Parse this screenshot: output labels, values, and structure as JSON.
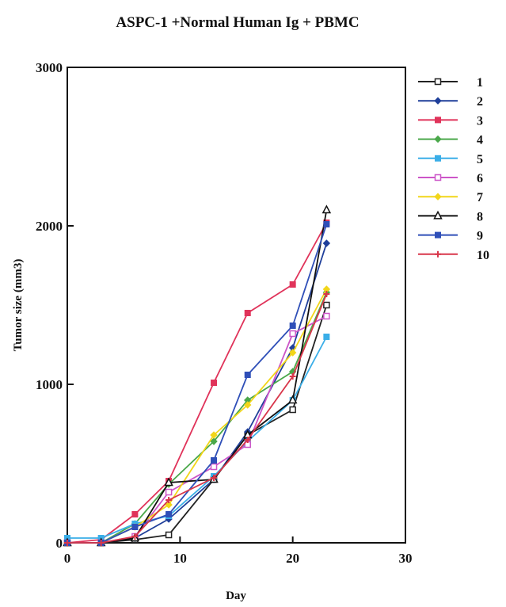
{
  "chart_data": {
    "type": "line",
    "title": "ASPC-1 +Normal Human Ig + PBMC",
    "xlabel": "Day",
    "ylabel": "Tumor size (mm3)",
    "xlim": [
      0,
      30
    ],
    "ylim": [
      0,
      3000
    ],
    "xticks": [
      "0",
      "10",
      "20",
      "30"
    ],
    "yticks": [
      "0",
      "1000",
      "2000",
      "3000"
    ],
    "grid": false,
    "legend_position": "right",
    "series": [
      {
        "name": "1",
        "color": "#222222",
        "marker": "open-square",
        "points": [
          [
            0,
            0
          ],
          [
            3,
            0
          ],
          [
            6,
            20
          ],
          [
            9,
            50
          ],
          [
            13,
            400
          ],
          [
            16,
            680
          ],
          [
            20,
            840
          ],
          [
            23,
            1500
          ]
        ]
      },
      {
        "name": "2",
        "color": "#1f3f9a",
        "marker": "diamond",
        "points": [
          [
            0,
            0
          ],
          [
            3,
            0
          ],
          [
            6,
            30
          ],
          [
            9,
            150
          ],
          [
            13,
            400
          ],
          [
            16,
            700
          ],
          [
            20,
            1230
          ],
          [
            23,
            1890
          ]
        ]
      },
      {
        "name": "3",
        "color": "#e0335a",
        "marker": "square",
        "points": [
          [
            0,
            0
          ],
          [
            3,
            20
          ],
          [
            6,
            180
          ],
          [
            9,
            390
          ],
          [
            13,
            1010
          ],
          [
            16,
            1450
          ],
          [
            20,
            1630
          ],
          [
            23,
            2020
          ]
        ]
      },
      {
        "name": "4",
        "color": "#4aa84a",
        "marker": "diamond",
        "points": [
          [
            0,
            0
          ],
          [
            3,
            0
          ],
          [
            6,
            120
          ],
          [
            9,
            370
          ],
          [
            13,
            640
          ],
          [
            16,
            900
          ],
          [
            20,
            1080
          ],
          [
            23,
            1580
          ]
        ]
      },
      {
        "name": "5",
        "color": "#3aaee8",
        "marker": "square",
        "points": [
          [
            0,
            30
          ],
          [
            3,
            30
          ],
          [
            6,
            120
          ],
          [
            9,
            170
          ],
          [
            13,
            420
          ],
          [
            16,
            640
          ],
          [
            20,
            900
          ],
          [
            23,
            1300
          ]
        ]
      },
      {
        "name": "6",
        "color": "#cc55c8",
        "marker": "open-square",
        "points": [
          [
            0,
            0
          ],
          [
            3,
            0
          ],
          [
            6,
            40
          ],
          [
            9,
            320
          ],
          [
            13,
            480
          ],
          [
            16,
            620
          ],
          [
            20,
            1320
          ],
          [
            23,
            1430
          ]
        ]
      },
      {
        "name": "7",
        "color": "#f2d61a",
        "marker": "diamond",
        "points": [
          [
            0,
            0
          ],
          [
            3,
            0
          ],
          [
            6,
            100
          ],
          [
            9,
            240
          ],
          [
            13,
            680
          ],
          [
            16,
            870
          ],
          [
            20,
            1200
          ],
          [
            23,
            1600
          ]
        ]
      },
      {
        "name": "8",
        "color": "#111111",
        "marker": "open-triangle",
        "points": [
          [
            0,
            0
          ],
          [
            3,
            0
          ],
          [
            6,
            30
          ],
          [
            9,
            380
          ],
          [
            13,
            400
          ],
          [
            16,
            680
          ],
          [
            20,
            900
          ],
          [
            23,
            2100
          ]
        ]
      },
      {
        "name": "9",
        "color": "#2f4fb8",
        "marker": "square",
        "points": [
          [
            0,
            0
          ],
          [
            3,
            0
          ],
          [
            6,
            100
          ],
          [
            9,
            180
          ],
          [
            13,
            520
          ],
          [
            16,
            1060
          ],
          [
            20,
            1370
          ],
          [
            23,
            2010
          ]
        ]
      },
      {
        "name": "10",
        "color": "#d8364a",
        "marker": "plus",
        "points": [
          [
            0,
            0
          ],
          [
            3,
            0
          ],
          [
            6,
            40
          ],
          [
            9,
            270
          ],
          [
            13,
            410
          ],
          [
            16,
            650
          ],
          [
            20,
            1050
          ],
          [
            23,
            1570
          ]
        ]
      }
    ]
  }
}
